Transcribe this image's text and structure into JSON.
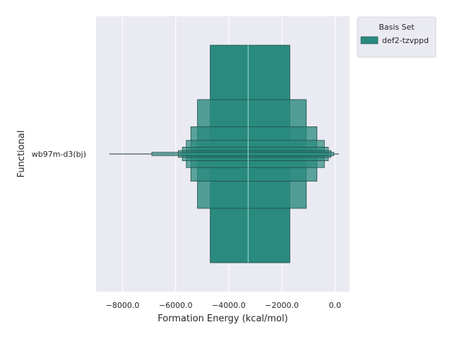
{
  "chart_data": {
    "type": "boxen",
    "orientation": "horizontal",
    "xlabel": "Formation Energy (kcal/mol)",
    "ylabel": "Functional",
    "categories": [
      "wb97m-d3(bj)"
    ],
    "xlim": [
      -9000,
      550
    ],
    "x_ticks": [
      -8000,
      -6000,
      -4000,
      -2000,
      0
    ],
    "x_tick_labels": [
      "−8000.0",
      "−6000.0",
      "−4000.0",
      "−2000.0",
      "0.0"
    ],
    "grid": true,
    "legend": {
      "title": "Basis Set",
      "placement": "outside-top-right",
      "entries": [
        {
          "label": "def2-tzvppd",
          "color": "#2a8a7f"
        }
      ]
    },
    "series": [
      {
        "name": "def2-tzvppd",
        "color": "#2a8a7f",
        "median": -3270,
        "letter_values": [
          {
            "low": -4700,
            "high": -1700,
            "fraction": 1.0
          },
          {
            "low": -5180,
            "high": -1080,
            "fraction": 0.5
          },
          {
            "low": -5430,
            "high": -680,
            "fraction": 0.25
          },
          {
            "low": -5600,
            "high": -400,
            "fraction": 0.125
          },
          {
            "low": -5750,
            "high": -250,
            "fraction": 0.0625
          },
          {
            "low": -5900,
            "high": -150,
            "fraction": 0.03125
          },
          {
            "low": -6900,
            "high": -40,
            "fraction": 0.015625
          }
        ],
        "whisker_min": -8500,
        "whisker_max": 150
      }
    ]
  }
}
